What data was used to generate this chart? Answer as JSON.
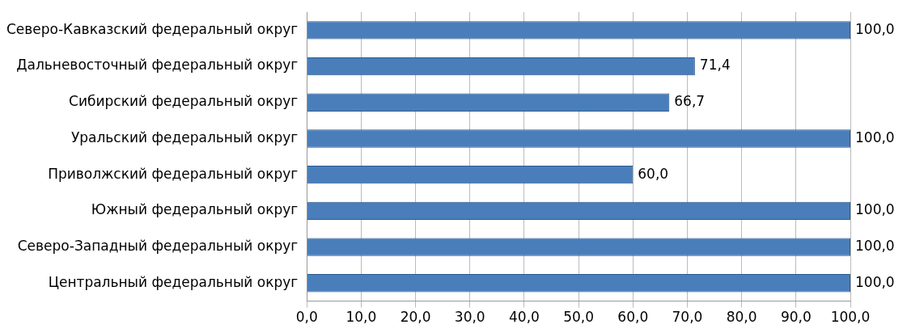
{
  "chart_data": {
    "type": "bar",
    "orientation": "horizontal",
    "categories": [
      "Северо-Кавказский федеральный округ",
      "Дальневосточный федеральный округ",
      "Сибирский федеральный округ",
      "Уральский федеральный округ",
      "Приволжский федеральный округ",
      "Южный федеральный округ",
      "Северо-Западный федеральный округ",
      "Центральный федеральный округ"
    ],
    "values": [
      100,
      71.4,
      66.7,
      100,
      60,
      100,
      100,
      100
    ],
    "value_labels": [
      "100,0",
      "71,4",
      "66,7",
      "100,0",
      "60,0",
      "100,0",
      "100,0",
      "100,0"
    ],
    "color": "#4a7ebb",
    "xlim": [
      0,
      100
    ],
    "xticks": [
      {
        "value": 0,
        "label": "0,0"
      },
      {
        "value": 10,
        "label": "10,0"
      },
      {
        "value": 20,
        "label": "20,0"
      },
      {
        "value": 30,
        "label": "30,0"
      },
      {
        "value": 40,
        "label": "40,0"
      },
      {
        "value": 50,
        "label": "50,0"
      },
      {
        "value": 60,
        "label": "60,0"
      },
      {
        "value": 70,
        "label": "70,0"
      },
      {
        "value": 80,
        "label": "80,0"
      },
      {
        "value": 90,
        "label": "90,0"
      },
      {
        "value": 100,
        "label": "100,0"
      }
    ],
    "grid": "x",
    "legend": false
  }
}
